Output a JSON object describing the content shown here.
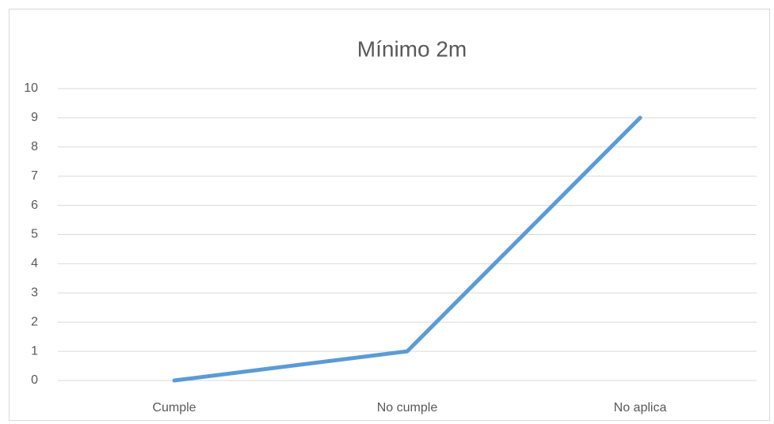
{
  "chart_data": {
    "type": "line",
    "title": "Mínimo 2m",
    "categories": [
      "Cumple",
      "No cumple",
      "No aplica"
    ],
    "values": [
      0,
      1,
      9
    ],
    "color": "#5b9bd5",
    "ylim": [
      0,
      10
    ],
    "yticks": [
      0,
      1,
      2,
      3,
      4,
      5,
      6,
      7,
      8,
      9,
      10
    ],
    "grid": true
  }
}
